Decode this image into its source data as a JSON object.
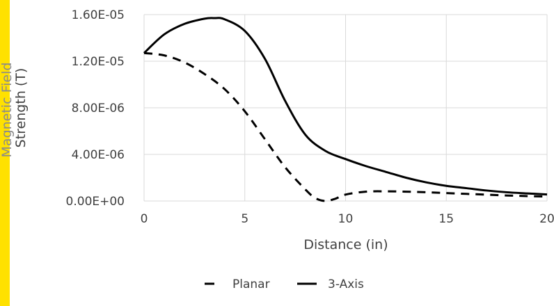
{
  "chart_data": {
    "type": "line",
    "title": "",
    "xlabel": "Distance (in)",
    "ylabel_lines": [
      "Magnetic Field",
      "Strength (T)"
    ],
    "ylabel_line_colors": [
      "#8B8B8B",
      "#404040"
    ],
    "xlim": [
      0,
      20
    ],
    "ylim": [
      0,
      1.6e-05
    ],
    "xticks": [
      0,
      5,
      10,
      15,
      20
    ],
    "xtick_labels": [
      "0",
      "5",
      "10",
      "15",
      "20"
    ],
    "yticks": [
      0,
      4e-06,
      8e-06,
      1.2e-05,
      1.6e-05
    ],
    "ytick_labels": [
      "0.00E+00",
      "4.00E-06",
      "8.00E-06",
      "1.20E-05",
      "1.60E-05"
    ],
    "grid": true,
    "legend_position": "bottom",
    "series": [
      {
        "name": "Planar",
        "style": "dashed",
        "color": "#000000",
        "x": [
          0,
          1,
          2,
          3,
          4,
          5,
          6,
          7,
          8,
          8.5,
          9,
          9.5,
          10,
          11,
          12,
          13,
          14,
          15,
          16,
          17,
          18,
          19,
          20
        ],
        "y": [
          1.27e-05,
          1.25e-05,
          1.19e-05,
          1.09e-05,
          9.6e-06,
          7.7e-06,
          5.3e-06,
          2.9e-06,
          1e-06,
          2.5e-07,
          0,
          2e-07,
          5.5e-07,
          8e-07,
          8.3e-07,
          8e-07,
          7.5e-07,
          6.8e-07,
          6.1e-07,
          5.4e-07,
          4.7e-07,
          4.2e-07,
          3.8e-07
        ]
      },
      {
        "name": "3-Axis",
        "style": "solid",
        "color": "#000000",
        "x": [
          0,
          1,
          2,
          3,
          3.5,
          4,
          5,
          6,
          7,
          8,
          9,
          10,
          11,
          12,
          13,
          14,
          15,
          16,
          17,
          18,
          19,
          20
        ],
        "y": [
          1.27e-05,
          1.43e-05,
          1.52e-05,
          1.565e-05,
          1.57e-05,
          1.56e-05,
          1.46e-05,
          1.22e-05,
          8.6e-06,
          5.7e-06,
          4.3e-06,
          3.6e-06,
          3e-06,
          2.5e-06,
          2e-06,
          1.6e-06,
          1.3e-06,
          1.1e-06,
          9e-07,
          7.5e-07,
          6.5e-07,
          5.6e-07
        ]
      }
    ]
  }
}
